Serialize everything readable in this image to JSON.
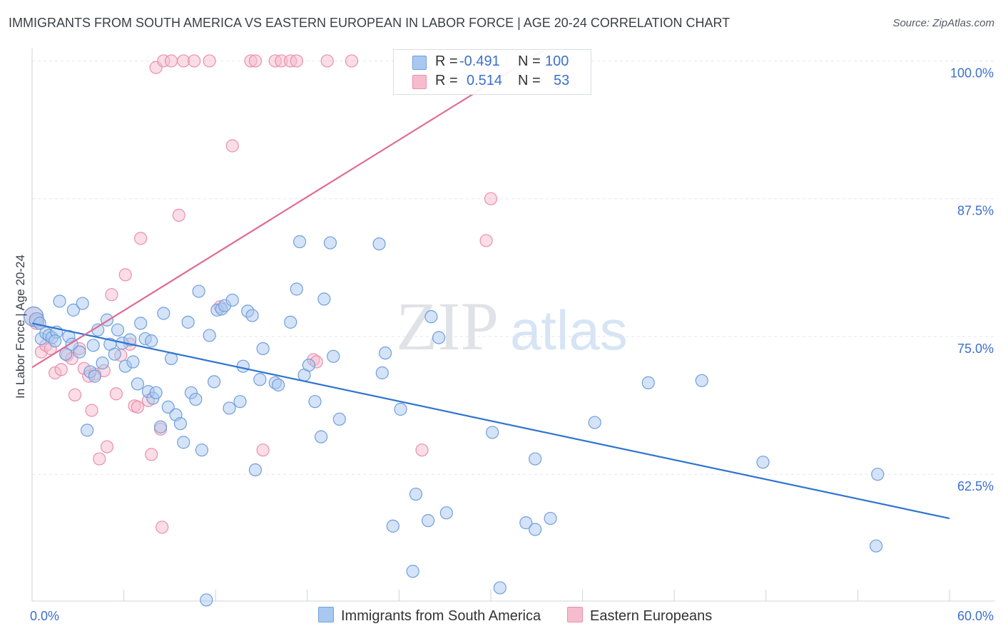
{
  "title": "IMMIGRANTS FROM SOUTH AMERICA VS EASTERN EUROPEAN IN LABOR FORCE | AGE 20-24 CORRELATION CHART",
  "source": "Source: ZipAtlas.com",
  "watermark": {
    "zip": "ZIP",
    "atlas": "atlas"
  },
  "legend": {
    "blue": {
      "r_label": "R =",
      "r_value": "-0.491",
      "n_label": "N =",
      "n_value": "100"
    },
    "pink": {
      "r_label": "R =",
      "r_value": "0.514",
      "n_label": "N =",
      "n_value": "53"
    }
  },
  "colors": {
    "blue_fill": "#a9c8ef",
    "blue_stroke": "#6f9fdc",
    "blue_line": "#2f74d0",
    "pink_fill": "#f6bccd",
    "pink_stroke": "#e990ac",
    "pink_line": "#e06a93",
    "tick_text": "#3b6fd0",
    "grid": "#e3e6ea"
  },
  "chart_data": {
    "type": "scatter",
    "title": "IMMIGRANTS FROM SOUTH AMERICA VS EASTERN EUROPEAN IN LABOR FORCE | AGE 20-24 CORRELATION CHART",
    "xlabel": "",
    "ylabel": "In Labor Force | Age 20-24",
    "xlim": [
      0,
      60
    ],
    "ylim": [
      51,
      101
    ],
    "x_tick_labels": [
      "0.0%",
      "60.0%"
    ],
    "y_ticks": [
      {
        "value": 100,
        "label": "100.0%"
      },
      {
        "value": 87.5,
        "label": "87.5%"
      },
      {
        "value": 75,
        "label": "75.0%"
      },
      {
        "value": 62.5,
        "label": "62.5%"
      }
    ],
    "series": [
      {
        "name": "Immigrants from South America",
        "color": "blue",
        "trend": {
          "x": [
            0,
            60
          ],
          "y": [
            76.2,
            58.5
          ]
        },
        "points": [
          [
            0.1,
            76.8,
            1.6
          ],
          [
            0.3,
            76.5,
            1.2
          ],
          [
            0.5,
            76.2,
            1
          ],
          [
            0.6,
            74.8,
            1
          ],
          [
            0.9,
            75.3,
            1
          ],
          [
            1.1,
            75.1,
            1
          ],
          [
            1.3,
            74.9,
            1
          ],
          [
            1.6,
            75.4,
            1
          ],
          [
            1.8,
            78.2,
            1
          ],
          [
            2.2,
            73.4,
            1
          ],
          [
            2.4,
            75,
            1
          ],
          [
            2.6,
            74.3,
            1
          ],
          [
            2.7,
            77.4,
            1
          ],
          [
            3.1,
            73.6,
            1
          ],
          [
            3.3,
            78,
            1
          ],
          [
            3.6,
            66.5,
            1
          ],
          [
            3.8,
            71.8,
            1
          ],
          [
            4.1,
            71.4,
            1
          ],
          [
            4.3,
            75.6,
            1
          ],
          [
            4.6,
            72.6,
            1
          ],
          [
            4.9,
            76.5,
            1
          ],
          [
            5.1,
            74.3,
            1
          ],
          [
            5.4,
            73.4,
            1
          ],
          [
            5.6,
            75.6,
            1
          ],
          [
            5.9,
            74.4,
            1
          ],
          [
            6.1,
            72.3,
            1
          ],
          [
            6.4,
            74.7,
            1
          ],
          [
            6.6,
            72.7,
            1
          ],
          [
            6.9,
            70.7,
            1
          ],
          [
            7.1,
            76.2,
            1
          ],
          [
            7.4,
            74.8,
            1
          ],
          [
            7.6,
            70,
            1
          ],
          [
            7.9,
            69.4,
            1
          ],
          [
            8.1,
            69.9,
            1
          ],
          [
            8.4,
            66.8,
            1
          ],
          [
            8.6,
            77.1,
            1
          ],
          [
            8.9,
            68.6,
            1
          ],
          [
            9.1,
            73,
            1
          ],
          [
            9.4,
            67.9,
            1
          ],
          [
            9.7,
            67.1,
            1
          ],
          [
            9.9,
            65.4,
            1
          ],
          [
            10.2,
            76.3,
            1
          ],
          [
            10.4,
            69.9,
            1
          ],
          [
            10.7,
            69.3,
            1
          ],
          [
            10.9,
            79.1,
            1
          ],
          [
            11.1,
            64.7,
            1
          ],
          [
            11.4,
            51.1,
            1
          ],
          [
            11.6,
            75.1,
            1
          ],
          [
            11.9,
            70.9,
            1
          ],
          [
            12.1,
            77.4,
            1
          ],
          [
            12.4,
            77.5,
            1
          ],
          [
            12.6,
            77.8,
            1
          ],
          [
            12.9,
            68.5,
            1
          ],
          [
            13.1,
            78.3,
            1
          ],
          [
            13.6,
            69.1,
            1
          ],
          [
            13.8,
            72.3,
            1
          ],
          [
            14.1,
            77.3,
            1
          ],
          [
            14.4,
            76.9,
            1
          ],
          [
            14.6,
            62.9,
            1
          ],
          [
            14.9,
            71.1,
            1
          ],
          [
            15.1,
            73.9,
            1
          ],
          [
            15.9,
            70.8,
            1
          ],
          [
            16.1,
            70.6,
            1
          ],
          [
            16.9,
            76.3,
            1
          ],
          [
            17.3,
            79.3,
            1
          ],
          [
            17.5,
            83.6,
            1
          ],
          [
            17.8,
            71.5,
            1
          ],
          [
            18.1,
            72.4,
            1
          ],
          [
            18.5,
            69.1,
            1
          ],
          [
            18.9,
            65.9,
            1
          ],
          [
            19.1,
            78.4,
            1
          ],
          [
            19.7,
            73.2,
            1
          ],
          [
            20.1,
            67.5,
            1
          ],
          [
            22.7,
            83.4,
            1
          ],
          [
            22.9,
            71.7,
            1
          ],
          [
            23.1,
            73.5,
            1
          ],
          [
            23.6,
            57.8,
            1
          ],
          [
            24.1,
            68.4,
            1
          ],
          [
            24.9,
            53.7,
            1
          ],
          [
            25.1,
            60.7,
            1
          ],
          [
            25.9,
            58.3,
            1
          ],
          [
            26.1,
            76.8,
            1
          ],
          [
            26.6,
            74.9,
            1
          ],
          [
            27.1,
            59,
            1
          ],
          [
            30.1,
            66.3,
            1
          ],
          [
            30.6,
            52.2,
            1
          ],
          [
            32.3,
            58.1,
            1
          ],
          [
            32.9,
            63.9,
            1
          ],
          [
            32.9,
            57.5,
            1
          ],
          [
            33.9,
            58.5,
            1
          ],
          [
            36.8,
            67.2,
            1
          ],
          [
            40.3,
            70.8,
            1
          ],
          [
            43.8,
            71,
            1
          ],
          [
            47.8,
            63.6,
            1
          ],
          [
            55.3,
            62.5,
            1
          ],
          [
            55.2,
            56,
            1
          ],
          [
            19.5,
            83.5,
            1
          ],
          [
            7.8,
            74.6,
            1
          ],
          [
            1.5,
            74.6,
            1
          ],
          [
            4.0,
            74.2,
            1
          ]
        ]
      },
      {
        "name": "Eastern Europeans",
        "color": "pink",
        "trend": {
          "x": [
            0,
            33.5
          ],
          "y": [
            72.2,
            101
          ]
        },
        "points": [
          [
            0.1,
            76.8,
            1.6
          ],
          [
            0.3,
            76.3,
            1.2
          ],
          [
            0.6,
            73.6,
            1
          ],
          [
            0.9,
            74.2,
            1
          ],
          [
            1.2,
            73.9,
            1
          ],
          [
            1.5,
            71.7,
            1
          ],
          [
            1.9,
            72,
            1
          ],
          [
            2.3,
            73.3,
            1
          ],
          [
            2.6,
            73,
            1
          ],
          [
            2.8,
            69.7,
            1
          ],
          [
            3.1,
            73.9,
            1
          ],
          [
            3.4,
            72.1,
            1
          ],
          [
            3.7,
            71.4,
            1
          ],
          [
            3.9,
            68.3,
            1
          ],
          [
            4.1,
            71.6,
            1
          ],
          [
            4.4,
            63.9,
            1
          ],
          [
            4.7,
            71.9,
            1
          ],
          [
            4.9,
            65,
            1
          ],
          [
            5.2,
            78.8,
            1
          ],
          [
            5.5,
            69.8,
            1
          ],
          [
            5.8,
            73.3,
            1
          ],
          [
            6.1,
            80.6,
            1
          ],
          [
            6.4,
            74.3,
            1
          ],
          [
            6.7,
            68.7,
            1
          ],
          [
            6.9,
            68.6,
            1
          ],
          [
            7.1,
            83.9,
            1
          ],
          [
            7.6,
            69.2,
            1
          ],
          [
            7.8,
            64.3,
            1
          ],
          [
            8.1,
            99.4,
            1
          ],
          [
            8.4,
            66.6,
            1
          ],
          [
            8.6,
            100,
            1
          ],
          [
            9.1,
            100,
            1
          ],
          [
            9.9,
            100,
            1
          ],
          [
            10.6,
            100,
            1
          ],
          [
            11.6,
            100,
            1
          ],
          [
            12.3,
            77.7,
            1
          ],
          [
            13.1,
            92.3,
            1
          ],
          [
            14.3,
            100,
            1
          ],
          [
            14.6,
            100,
            1
          ],
          [
            15.1,
            64.7,
            1
          ],
          [
            15.9,
            100,
            1
          ],
          [
            16.3,
            100,
            1
          ],
          [
            16.9,
            100,
            1
          ],
          [
            17.3,
            100,
            1
          ],
          [
            18.4,
            72.9,
            1
          ],
          [
            18.6,
            72.7,
            1
          ],
          [
            19.3,
            100,
            1
          ],
          [
            20.9,
            100,
            1
          ],
          [
            25.5,
            64.7,
            1
          ],
          [
            29.7,
            83.7,
            1
          ],
          [
            30.0,
            87.5,
            1
          ],
          [
            9.6,
            86,
            1
          ],
          [
            8.5,
            57.7,
            1
          ]
        ]
      }
    ]
  },
  "bottom_legend": [
    "Immigrants from South America",
    "Eastern Europeans"
  ]
}
